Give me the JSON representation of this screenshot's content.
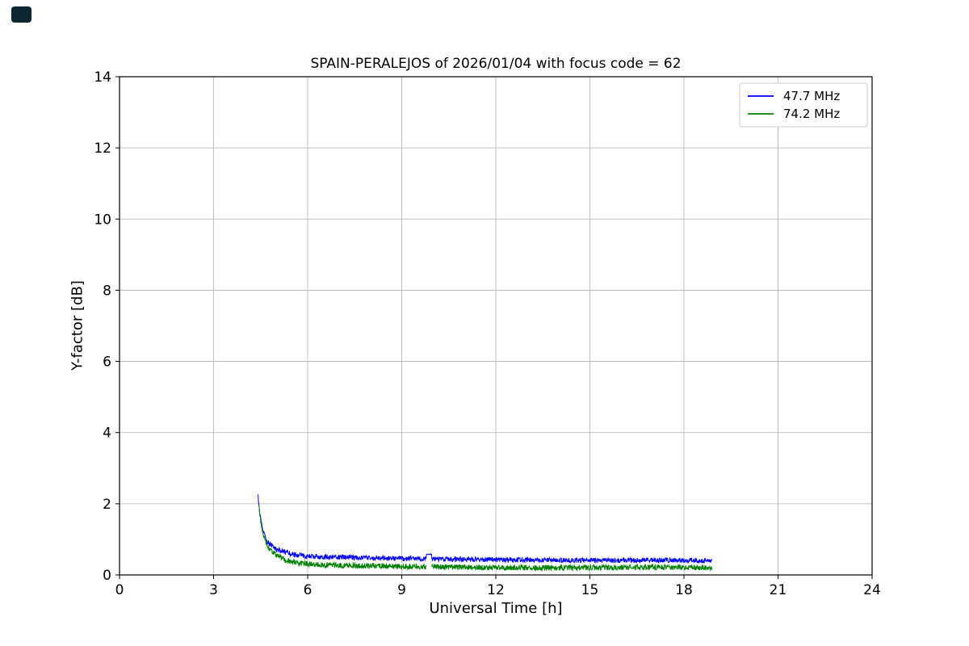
{
  "page": {
    "background": "#ffffff"
  },
  "corner_badge": {
    "color": "#0c2730"
  },
  "chart_data": {
    "type": "line",
    "title": "SPAIN-PERALEJOS of 2026/01/04 with focus code = 62",
    "xlabel": "Universal Time [h]",
    "ylabel": "Y-factor [dB]",
    "xlim": [
      0,
      24
    ],
    "ylim": [
      0,
      14
    ],
    "xticks": [
      0,
      3,
      6,
      9,
      12,
      15,
      18,
      21,
      24
    ],
    "yticks": [
      0,
      2,
      4,
      6,
      8,
      10,
      12,
      14
    ],
    "grid": true,
    "grid_color": "#b0b0b0",
    "legend": {
      "position": "upper right",
      "entries": [
        {
          "label": "47.7 MHz",
          "color": "#0000ff"
        },
        {
          "label": "74.2 MHz",
          "color": "#008000"
        }
      ]
    },
    "series": [
      {
        "name": "47.7 MHz",
        "color": "#0000ff",
        "x_start": 4.42,
        "x_end": 18.9,
        "sample_step_hours": 0.01,
        "noise_amplitude": 0.07,
        "gap": {
          "x_start": 9.78,
          "x_end": 9.95,
          "hold_value": 0.58
        },
        "anchor_points": [
          [
            4.42,
            2.2
          ],
          [
            4.46,
            1.8
          ],
          [
            4.55,
            1.3
          ],
          [
            4.7,
            0.95
          ],
          [
            5.0,
            0.72
          ],
          [
            5.5,
            0.58
          ],
          [
            6.0,
            0.52
          ],
          [
            7.0,
            0.5
          ],
          [
            8.0,
            0.48
          ],
          [
            9.0,
            0.46
          ],
          [
            9.78,
            0.45
          ],
          [
            9.95,
            0.45
          ],
          [
            11.0,
            0.44
          ],
          [
            13.0,
            0.42
          ],
          [
            15.0,
            0.41
          ],
          [
            17.0,
            0.42
          ],
          [
            18.9,
            0.4
          ]
        ]
      },
      {
        "name": "74.2 MHz",
        "color": "#008000",
        "x_start": 4.45,
        "x_end": 18.9,
        "sample_step_hours": 0.01,
        "noise_amplitude": 0.08,
        "gap": {
          "x_start": 9.78,
          "x_end": 9.95,
          "hold_value": null
        },
        "anchor_points": [
          [
            4.45,
            1.9
          ],
          [
            4.5,
            1.5
          ],
          [
            4.6,
            1.05
          ],
          [
            4.8,
            0.7
          ],
          [
            5.0,
            0.55
          ],
          [
            5.3,
            0.42
          ],
          [
            5.7,
            0.33
          ],
          [
            6.5,
            0.28
          ],
          [
            7.5,
            0.26
          ],
          [
            9.0,
            0.24
          ],
          [
            9.78,
            0.24
          ],
          [
            9.95,
            0.22
          ],
          [
            12.0,
            0.21
          ],
          [
            14.0,
            0.2
          ],
          [
            16.0,
            0.21
          ],
          [
            18.0,
            0.22
          ],
          [
            18.9,
            0.2
          ]
        ]
      }
    ]
  }
}
